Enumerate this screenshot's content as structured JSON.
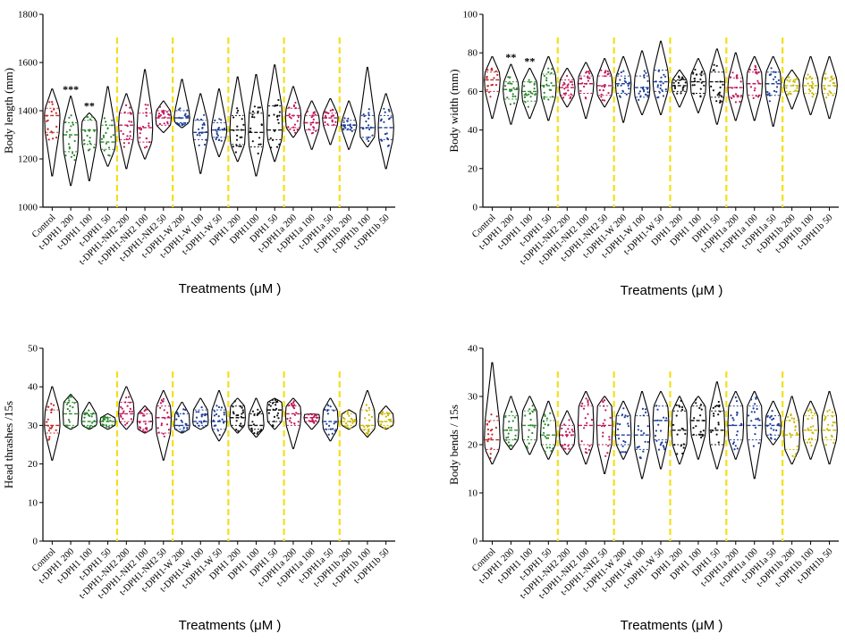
{
  "colors": {
    "axis": "#000000",
    "separator": "#f2e01a",
    "Control": "#c62828",
    "t-DPH1": "#2e8b2e",
    "t-DPH1-NH2": "#c2185b",
    "t-DPH1-W": "#1f3f99",
    "DPH1": "#111111",
    "t-DPH1a": "#c2185b",
    "t-DPH1b": "#1f3f99",
    "t-DPH1b-yellow": "#c9b800"
  },
  "treatments": [
    "Control",
    "t-DPH1 200",
    "t-DPH1 100",
    "t-DPH1 50",
    "t-DPH1-NH2 200",
    "t-DPH1-NH2 100",
    "t-DPH1-NH2 50",
    "t-DPH1-W 200",
    "t-DPH1-W 100",
    "t-DPH1-W 50",
    "DPH1 200",
    "DPH1 100",
    "DPH1 50",
    "t-DPH1a 200",
    "t-DPH1a 100",
    "t-DPH1a 50",
    "t-DPH1b 200",
    "t-DPH1b 100",
    "t-DPH1b 50"
  ],
  "chart_data": [
    {
      "type": "violin",
      "id": "body-length",
      "title": "",
      "xlabel": "Treatments (μM )",
      "ylabel": "Body length (mm)",
      "ylim": [
        1000,
        1800
      ],
      "yticks": [
        "1000",
        "1200",
        "1400",
        "1600",
        "1800"
      ],
      "xticklabels": [
        "Control",
        "t-DPH1 200",
        "t-DPH1 100",
        "t-DPH1 50",
        "t-DPH1-NH2 200",
        "t-DPH1-NH2 100",
        "t-DPH1-NH2 50",
        "t-DPH1-W 200",
        "t-DPH1-W 100",
        "t-DPH1-W 50",
        "DPH1 200",
        "DPH1100",
        "DPH1 50",
        "t-DPH1a 200",
        "t-DPH1a 100",
        "t-DPH1a 50",
        "t-DPH1b 200",
        "t-DPH1b 100",
        "t-DPH1b 50"
      ],
      "colors": [
        "#c62828",
        "#2e8b2e",
        "#2e8b2e",
        "#2e8b2e",
        "#c2185b",
        "#c2185b",
        "#c2185b",
        "#1f3f99",
        "#1f3f99",
        "#1f3f99",
        "#111111",
        "#111111",
        "#111111",
        "#c2185b",
        "#c2185b",
        "#c2185b",
        "#1f3f99",
        "#1f3f99",
        "#1f3f99"
      ],
      "min": [
        1130,
        1090,
        1110,
        1170,
        1160,
        1200,
        1310,
        1330,
        1140,
        1210,
        1190,
        1130,
        1190,
        1290,
        1240,
        1260,
        1240,
        1250,
        1160
      ],
      "max": [
        1490,
        1460,
        1390,
        1500,
        1470,
        1570,
        1440,
        1530,
        1470,
        1490,
        1540,
        1550,
        1590,
        1500,
        1440,
        1450,
        1440,
        1580,
        1470
      ],
      "median": [
        1380,
        1300,
        1320,
        1270,
        1340,
        1330,
        1370,
        1370,
        1310,
        1320,
        1320,
        1310,
        1320,
        1380,
        1350,
        1370,
        1340,
        1330,
        1330
      ],
      "q1": [
        1310,
        1230,
        1260,
        1240,
        1280,
        1270,
        1340,
        1350,
        1280,
        1290,
        1260,
        1250,
        1280,
        1330,
        1320,
        1340,
        1320,
        1290,
        1280
      ],
      "q3": [
        1410,
        1350,
        1360,
        1340,
        1390,
        1390,
        1400,
        1400,
        1360,
        1350,
        1380,
        1390,
        1420,
        1410,
        1380,
        1390,
        1360,
        1380,
        1380
      ],
      "significance": [
        "",
        "***",
        "**",
        "",
        "",
        "",
        "",
        "",
        "",
        "",
        "",
        "",
        "",
        "",
        "",
        "",
        "",
        "",
        ""
      ],
      "separators_after": [
        3,
        6,
        9,
        12,
        15
      ]
    },
    {
      "type": "violin",
      "id": "body-width",
      "title": "",
      "xlabel": "Treatments (μM )",
      "ylabel": "Body width (mm)",
      "ylim": [
        0,
        100
      ],
      "yticks": [
        "0",
        "20",
        "40",
        "60",
        "80",
        "100"
      ],
      "xticklabels": [
        "Control",
        "t-DPH1 200",
        "t-DPH1 100",
        "t-DPH1 50",
        "t-DPH1-NH2 200",
        "t-DPH1-NH2 100",
        "t-DPH1-NH2 50",
        "t-DPH1-W 200",
        "t-DPH1-W 100",
        "t-DPH1-W 50",
        "DPH1 200",
        "DPH1 100",
        "DPH1 50",
        "t-DPH1a 200",
        "t-DPH1a 100",
        "t-DPH1a 50",
        "t-DPH1b 200",
        "t-DPH1b 100",
        "t-DPH1b 50"
      ],
      "colors": [
        "#c62828",
        "#2e8b2e",
        "#2e8b2e",
        "#2e8b2e",
        "#c2185b",
        "#c2185b",
        "#c2185b",
        "#1f3f99",
        "#1f3f99",
        "#1f3f99",
        "#111111",
        "#111111",
        "#111111",
        "#c2185b",
        "#c2185b",
        "#1f3f99",
        "#c9b800",
        "#c9b800",
        "#c9b800"
      ],
      "min": [
        46,
        43,
        46,
        45,
        52,
        46,
        52,
        44,
        48,
        48,
        52,
        49,
        43,
        45,
        45,
        42,
        51,
        48,
        46
      ],
      "max": [
        78,
        74,
        72,
        78,
        72,
        75,
        77,
        78,
        81,
        86,
        71,
        77,
        82,
        80,
        78,
        78,
        71,
        78,
        78
      ],
      "median": [
        66,
        61,
        60,
        63,
        62,
        64,
        63,
        64,
        62,
        65,
        63,
        65,
        65,
        62,
        64,
        64,
        63,
        63,
        63
      ],
      "q1": [
        60,
        56,
        55,
        57,
        58,
        59,
        58,
        59,
        57,
        60,
        60,
        59,
        57,
        57,
        58,
        58,
        60,
        59,
        59
      ],
      "q3": [
        70,
        65,
        65,
        69,
        66,
        68,
        68,
        68,
        68,
        71,
        66,
        69,
        70,
        67,
        70,
        70,
        66,
        67,
        67
      ],
      "significance": [
        "",
        "**",
        "**",
        "",
        "",
        "",
        "",
        "",
        "",
        "",
        "",
        "",
        "",
        "",
        "",
        "",
        "",
        "",
        ""
      ],
      "separators_after": [
        3,
        6,
        9,
        12,
        15
      ]
    },
    {
      "type": "violin",
      "id": "head-thrashes",
      "title": "",
      "xlabel": "Treatments (μM )",
      "ylabel": "Head thrashes /15s",
      "ylim": [
        0,
        50
      ],
      "yticks": [
        "0",
        "10",
        "20",
        "30",
        "40",
        "50"
      ],
      "xticklabels": [
        "Control",
        "t-DPH1 200",
        "t-DPH1 100",
        "t-DPH1 50",
        "t-DPH1-NH2 200",
        "t-DPH1-NH2 100",
        "t-DPH1-NH2 50",
        "t-DPH1-W 200",
        "t-DPH1-W 100",
        "t-DPH1-W 50",
        "DPH1 200",
        "DPH1 100",
        "DPH1 50",
        "t-DPH1a 200",
        "t-DPH1a 100",
        "t-DPH1a 50",
        "t-DPH1b 200",
        "t-DPH1b 100",
        "t-DPH1b 50"
      ],
      "colors": [
        "#c62828",
        "#2e8b2e",
        "#2e8b2e",
        "#2e8b2e",
        "#c2185b",
        "#c2185b",
        "#c2185b",
        "#1f3f99",
        "#1f3f99",
        "#1f3f99",
        "#111111",
        "#111111",
        "#111111",
        "#c2185b",
        "#c2185b",
        "#1f3f99",
        "#c9b800",
        "#c9b800",
        "#c9b800"
      ],
      "min": [
        21,
        29,
        29,
        29,
        29,
        28,
        21,
        28,
        29,
        26,
        28,
        27,
        29,
        24,
        29,
        26,
        29,
        27,
        29
      ],
      "max": [
        40,
        38,
        36,
        33,
        40,
        35,
        39,
        36,
        37,
        39,
        37,
        37,
        37,
        37,
        33,
        37,
        34,
        39,
        35
      ],
      "median": [
        30,
        33,
        31,
        31,
        33,
        31,
        32,
        30,
        31,
        31,
        32,
        30,
        34,
        33,
        32,
        31,
        31,
        30,
        31
      ],
      "q1": [
        28,
        30,
        30,
        30,
        31,
        29,
        28,
        29,
        30,
        29,
        30,
        29,
        31,
        30,
        31,
        29,
        30,
        29,
        30
      ],
      "q3": [
        34,
        36,
        33,
        32,
        36,
        33,
        35,
        33,
        34,
        34,
        35,
        33,
        36,
        35,
        33,
        34,
        33,
        34,
        33
      ],
      "significance": [
        "",
        "",
        "",
        "",
        "",
        "",
        "",
        "",
        "",
        "",
        "",
        "",
        "",
        "",
        "",
        "",
        "",
        "",
        ""
      ],
      "separators_after": [
        3,
        6,
        9,
        12,
        15
      ]
    },
    {
      "type": "violin",
      "id": "body-bends",
      "title": "",
      "xlabel": "Treatments (μM )",
      "ylabel": "Body bends / 15s",
      "ylim": [
        0,
        40
      ],
      "yticks": [
        "0",
        "10",
        "20",
        "30",
        "40"
      ],
      "xticklabels": [
        "Control",
        "t-DPH1 200",
        "t-DPH1 100",
        "t-DPH1 50",
        "t-DPH1-NH2 200",
        "t-DPH1-NH2 100",
        "t-DPH1-NH2 50",
        "t-DPH1-W 200",
        "t-DPH1-W 100",
        "t-DPH1-W 50",
        "DPH1 200",
        "DPH1 100",
        "DPH1 50",
        "t-DPH1a 200",
        "t-DPH1a 100",
        "t-DPH1a 50",
        "t-DPH1b 200",
        "t-DPH1b 100",
        "t-DPH1b 50"
      ],
      "colors": [
        "#c62828",
        "#2e8b2e",
        "#2e8b2e",
        "#2e8b2e",
        "#c2185b",
        "#c2185b",
        "#c2185b",
        "#1f3f99",
        "#1f3f99",
        "#1f3f99",
        "#111111",
        "#111111",
        "#111111",
        "#1f3f99",
        "#1f3f99",
        "#1f3f99",
        "#c9b800",
        "#c9b800",
        "#c9b800"
      ],
      "min": [
        16,
        19,
        18,
        17,
        18,
        16,
        14,
        17,
        13,
        15,
        16,
        17,
        15,
        17,
        13,
        20,
        16,
        17,
        16
      ],
      "max": [
        37,
        30,
        30,
        29,
        27,
        31,
        30,
        29,
        31,
        31,
        30,
        30,
        33,
        31,
        31,
        29,
        30,
        29,
        31
      ],
      "median": [
        21,
        23,
        24,
        22,
        22,
        24,
        24,
        22,
        22,
        25,
        23,
        25,
        23,
        24,
        24,
        24,
        22,
        23,
        23
      ],
      "q1": [
        19,
        21,
        21,
        20,
        20,
        20,
        20,
        20,
        19,
        21,
        20,
        22,
        20,
        21,
        21,
        22,
        19,
        21,
        21
      ],
      "q3": [
        25,
        26,
        27,
        25,
        24,
        28,
        28,
        26,
        26,
        28,
        27,
        28,
        27,
        28,
        28,
        26,
        25,
        26,
        26
      ],
      "significance": [
        "",
        "",
        "",
        "",
        "",
        "",
        "",
        "",
        "",
        "",
        "",
        "",
        "",
        "",
        "",
        "",
        "",
        "",
        ""
      ],
      "separators_after": [
        3,
        6,
        9,
        12,
        15
      ]
    }
  ]
}
